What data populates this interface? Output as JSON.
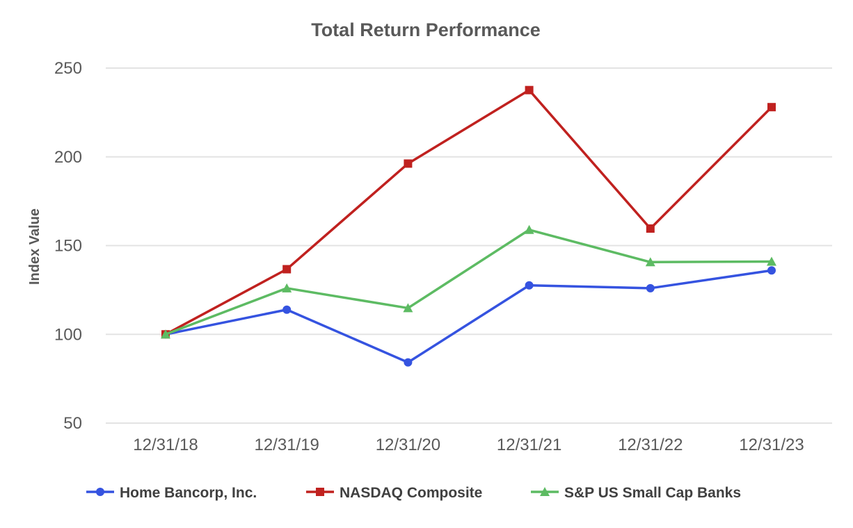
{
  "chart_data": {
    "type": "line",
    "title": "Total Return Performance",
    "xlabel": "",
    "ylabel": "Index Value",
    "categories": [
      "12/31/18",
      "12/31/19",
      "12/31/20",
      "12/31/21",
      "12/31/22",
      "12/31/23"
    ],
    "yticks": [
      50,
      100,
      150,
      200,
      250
    ],
    "ylim": [
      50,
      250
    ],
    "grid": true,
    "legend_position": "bottom",
    "series": [
      {
        "name": "Home Bancorp, Inc.",
        "color": "#3553e0",
        "marker": "circle",
        "values": [
          100,
          113.9,
          84.2,
          127.6,
          126.0,
          136.0
        ]
      },
      {
        "name": "NASDAQ Composite",
        "color": "#c0211f",
        "marker": "square",
        "values": [
          100,
          136.7,
          196.2,
          237.6,
          159.6,
          228.0
        ]
      },
      {
        "name": "S&P US Small Cap Banks",
        "color": "#5dbb63",
        "marker": "triangle",
        "values": [
          100,
          126.0,
          114.8,
          158.9,
          140.7,
          141.0
        ]
      }
    ]
  }
}
